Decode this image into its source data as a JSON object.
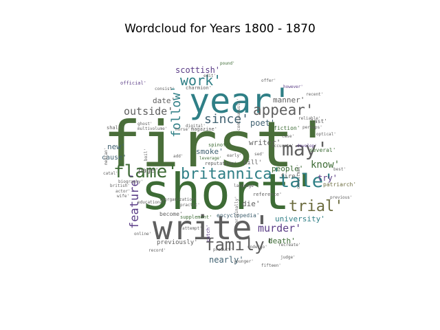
{
  "title": "Wordcloud for Years 1800 - 1870",
  "palette": {
    "green": "#3d6b35",
    "dark_green": "#4a6e3a",
    "teal": "#2f7f86",
    "grey": "#5f5f5f",
    "olive": "#6b6b3e",
    "purple": "#5a3c86",
    "slate": "#3f6070"
  },
  "words": [
    {
      "text": "first'",
      "color": "dark_green"
    },
    {
      "text": "short'",
      "color": "green"
    },
    {
      "text": "write'",
      "color": "grey"
    },
    {
      "text": "year'",
      "color": "teal"
    },
    {
      "text": "flame'",
      "color": "green"
    },
    {
      "text": "britannica'",
      "color": "teal"
    },
    {
      "text": "family'",
      "color": "grey"
    },
    {
      "text": "may'",
      "color": "grey"
    },
    {
      "text": "tale'",
      "color": "teal"
    },
    {
      "text": "trial'",
      "color": "olive"
    },
    {
      "text": "appear'",
      "color": "grey"
    },
    {
      "text": "work'",
      "color": "teal"
    },
    {
      "text": "since'",
      "color": "slate"
    },
    {
      "text": "follow'",
      "color": "teal"
    },
    {
      "text": "outside'",
      "color": "grey"
    },
    {
      "text": "feature'",
      "color": "purple"
    },
    {
      "text": "know'",
      "color": "green"
    },
    {
      "text": "murder'",
      "color": "purple"
    },
    {
      "text": "scottish'",
      "color": "purple"
    },
    {
      "text": "manner'",
      "color": "grey"
    },
    {
      "text": "poet'",
      "color": "slate"
    },
    {
      "text": "date'",
      "color": "grey"
    },
    {
      "text": "writer'",
      "color": "grey"
    },
    {
      "text": "death'",
      "color": "green"
    },
    {
      "text": "nearly'",
      "color": "slate"
    },
    {
      "text": "new'",
      "color": "slate"
    },
    {
      "text": "page'",
      "color": "grey"
    },
    {
      "text": "cause'",
      "color": "slate"
    },
    {
      "text": "smoke'",
      "color": "slate"
    },
    {
      "text": "people'",
      "color": "green"
    },
    {
      "text": "try'",
      "color": "purple"
    },
    {
      "text": "university'",
      "color": "teal"
    },
    {
      "text": "die'",
      "color": "grey"
    },
    {
      "text": "kill'",
      "color": "grey"
    },
    {
      "text": "fire'",
      "color": "grey"
    },
    {
      "text": "patriarch'",
      "color": "olive"
    },
    {
      "text": "encyclopedia'",
      "color": "slate"
    },
    {
      "text": "previously'",
      "color": "grey"
    },
    {
      "text": "fiction'",
      "color": "green"
    },
    {
      "text": "last'",
      "color": "grey"
    },
    {
      "text": "several'",
      "color": "green"
    },
    {
      "text": "supplement'",
      "color": "green"
    },
    {
      "text": "become'",
      "color": "grey"
    },
    {
      "text": "reference'",
      "color": "grey"
    },
    {
      "text": "reputation'",
      "color": "grey"
    },
    {
      "text": "magazine'",
      "color": "grey"
    },
    {
      "text": "spinoff'",
      "color": "green"
    },
    {
      "text": "biography'",
      "color": "grey"
    },
    {
      "text": "multivolume'",
      "color": "grey"
    },
    {
      "text": "charmion'",
      "color": "grey"
    },
    {
      "text": "consist'",
      "color": "grey"
    },
    {
      "text": "official'",
      "color": "purple"
    },
    {
      "text": "educational'",
      "color": "grey"
    },
    {
      "text": "online'",
      "color": "grey"
    },
    {
      "text": "catch'",
      "color": "purple"
    },
    {
      "text": "product'",
      "color": "grey"
    },
    {
      "text": "fifteen'",
      "color": "grey"
    },
    {
      "text": "younger'",
      "color": "grey"
    },
    {
      "text": "judge'",
      "color": "grey"
    },
    {
      "text": "recreate'",
      "color": "grey"
    },
    {
      "text": "accurate'",
      "color": "grey"
    },
    {
      "text": "develop'",
      "color": "purple"
    },
    {
      "text": "reliable'",
      "color": "grey"
    },
    {
      "text": "perhaps'",
      "color": "grey"
    },
    {
      "text": "optical'",
      "color": "grey"
    },
    {
      "text": "previous'",
      "color": "grey"
    },
    {
      "text": "best'",
      "color": "grey"
    },
    {
      "text": "shall'",
      "color": "grey"
    },
    {
      "text": "ghost'",
      "color": "grey"
    },
    {
      "text": "horse'",
      "color": "grey"
    },
    {
      "text": "digital'",
      "color": "grey"
    },
    {
      "text": "british'",
      "color": "grey"
    },
    {
      "text": "actor'",
      "color": "grey"
    },
    {
      "text": "attempt'",
      "color": "grey"
    },
    {
      "text": "practic'",
      "color": "grey"
    },
    {
      "text": "leverage'",
      "color": "green"
    },
    {
      "text": "early'",
      "color": "grey"
    },
    {
      "text": "undergo'",
      "color": "grey"
    },
    {
      "text": "sed'",
      "color": "grey"
    },
    {
      "text": "christmas'",
      "color": "grey"
    },
    {
      "text": "continuously'",
      "color": "grey"
    },
    {
      "text": "originally'",
      "color": "grey"
    },
    {
      "text": "reorganization'",
      "color": "grey"
    },
    {
      "text": "however'",
      "color": "purple"
    },
    {
      "text": "recent'",
      "color": "grey"
    },
    {
      "text": "case'",
      "color": "grey"
    },
    {
      "text": "catal'",
      "color": "grey"
    },
    {
      "text": "pound'",
      "color": "green"
    },
    {
      "text": "edit'",
      "color": "grey"
    },
    {
      "text": "add'",
      "color": "grey"
    },
    {
      "text": "boil'",
      "color": "grey"
    },
    {
      "text": "wife'",
      "color": "grey"
    },
    {
      "text": "median'",
      "color": "grey"
    },
    {
      "text": "language'",
      "color": "grey"
    },
    {
      "text": "record'",
      "color": "grey"
    },
    {
      "text": "offer'",
      "color": "grey"
    }
  ]
}
